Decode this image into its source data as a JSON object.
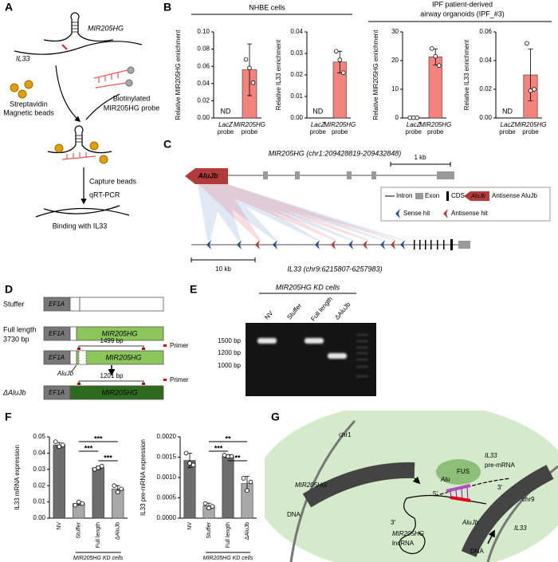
{
  "chart_data": [
    {
      "type": "bar",
      "ylabel": "Relative MIR205HG enrichment",
      "categories": [
        [
          "LacZ",
          "probe"
        ],
        [
          "MIR205HG",
          "probe"
        ]
      ],
      "values": [
        null,
        0.056
      ],
      "value_labels": [
        "ND",
        null
      ],
      "errors": [
        null,
        0.03
      ],
      "points": [
        null,
        [
          0.068,
          0.058,
          0.041
        ]
      ],
      "color": "#f4837d",
      "ylim": [
        0,
        0.1
      ],
      "yticks": [
        {
          "value": 0,
          "label": "0.00"
        },
        0.02,
        0.04,
        0.06,
        0.08,
        {
          "value": 0.1,
          "label": "0.10"
        }
      ]
    },
    {
      "type": "bar",
      "ylabel": "Relative IL33 enrichment",
      "categories": [
        [
          "LacZ",
          "probe"
        ],
        [
          "MIR205HG",
          "probe"
        ]
      ],
      "values": [
        null,
        0.026
      ],
      "value_labels": [
        "ND",
        null
      ],
      "errors": [
        null,
        0.005
      ],
      "points": [
        null,
        [
          0.031,
          0.027,
          0.021
        ]
      ],
      "color": "#f4837d",
      "ylim": [
        0,
        0.04
      ],
      "yticks": [
        {
          "value": 0,
          "label": "0.00"
        },
        0.01,
        0.02,
        0.03,
        0.04
      ]
    },
    {
      "type": "bar",
      "ylabel": "Relative MIR205HG enrichment",
      "categories": [
        [
          "LacZ",
          "probe"
        ],
        [
          "MIR205HG",
          "probe"
        ]
      ],
      "values": [
        0.1,
        21.3
      ],
      "errors": [
        0.1,
        2.8
      ],
      "points": [
        [
          0.1,
          0.1,
          0.1
        ],
        [
          24.2,
          21.5,
          18.3
        ]
      ],
      "color": "#f4837d",
      "ylim": [
        0,
        30
      ],
      "yticks": [
        0,
        10,
        20,
        30
      ]
    },
    {
      "type": "bar",
      "ylabel": "Relative IL33 enrichment",
      "categories": [
        [
          "LacZ",
          "probe"
        ],
        [
          "MIR205HG",
          "probe"
        ]
      ],
      "values": [
        null,
        0.03
      ],
      "value_labels": [
        "ND",
        null
      ],
      "errors": [
        null,
        0.018
      ],
      "points": [
        null,
        [
          0.052,
          0.019,
          0.02
        ]
      ],
      "color": "#f4837d",
      "ylim": [
        0,
        0.06
      ],
      "yticks": [
        {
          "value": 0,
          "label": "0.00"
        },
        0.02,
        0.04,
        0.06
      ]
    },
    {
      "type": "bar",
      "ylabel": "IL33 mRNA expression",
      "categories": [
        "NV",
        "Stuffer",
        "Full length",
        "ΔAluJb"
      ],
      "values": [
        0.045,
        0.009,
        0.031,
        0.018
      ],
      "errors": [
        0.0015,
        0.001,
        0.001,
        0.002
      ],
      "points": [
        [
          0.047,
          0.044,
          0.045
        ],
        [
          0.008,
          0.01,
          0.009
        ],
        [
          0.03,
          0.031,
          0.032
        ],
        [
          0.02,
          0.016,
          0.018
        ]
      ],
      "colors": [
        "#6d6d6d",
        "#a8a8a8",
        "#6d6d6d",
        "#a8a8a8"
      ],
      "significance": [
        {
          "between": [
            "Stuffer",
            "ΔAluJb"
          ],
          "label": "***"
        },
        {
          "between": [
            "Stuffer",
            "Full length"
          ],
          "label": "***"
        },
        {
          "between": [
            "Full length",
            "ΔAluJb"
          ],
          "label": "***"
        }
      ],
      "group_label": "MIR205HG KD cells",
      "ylim": [
        0,
        0.05
      ],
      "yticks": [
        {
          "value": 0,
          "label": "0.00"
        },
        0.01,
        0.02,
        0.03,
        0.04,
        0.05
      ]
    },
    {
      "type": "bar",
      "ylabel": "IL33 pre-mRNA expression",
      "categories": [
        "NV",
        "Stuffer",
        "Full length",
        "ΔAluJb"
      ],
      "values": [
        0.00142,
        0.0003,
        0.00153,
        0.00085
      ],
      "errors": [
        0.00018,
        7e-05,
        3e-05,
        0.00018
      ],
      "points": [
        [
          0.0016,
          0.00135,
          0.00131
        ],
        [
          0.00036,
          0.00025,
          0.00029
        ],
        [
          0.00155,
          0.00152,
          0.00152
        ],
        [
          0.00098,
          0.00068,
          0.00089
        ]
      ],
      "colors": [
        "#6d6d6d",
        "#a8a8a8",
        "#6d6d6d",
        "#a8a8a8"
      ],
      "significance": [
        {
          "between": [
            "Stuffer",
            "ΔAluJb"
          ],
          "label": "**"
        },
        {
          "between": [
            "Stuffer",
            "Full length"
          ],
          "label": "***"
        },
        {
          "between": [
            "Full length",
            "ΔAluJb"
          ],
          "label": "**"
        }
      ],
      "group_label": "MIR205HG KD cells",
      "ylim": [
        0,
        0.002
      ],
      "yticks": [
        {
          "value": 0,
          "label": "0.0000"
        },
        {
          "value": 0.0005,
          "label": "0.0005"
        },
        {
          "value": 0.001,
          "label": "0.0010"
        },
        {
          "value": 0.0015,
          "label": "0.0015"
        },
        {
          "value": 0.002,
          "label": "0.0020"
        }
      ]
    }
  ],
  "panels": {
    "A": {
      "letter": "A",
      "gene": "MIR205HG",
      "target": "IL33",
      "beads": [
        "Streptavidin",
        "Magnetic beads"
      ],
      "probe": [
        "Biotinylated",
        "MIR205HG probe"
      ],
      "steps": [
        "Capture beads",
        "qRT-PCR"
      ],
      "result": "Binding with IL33"
    },
    "B": {
      "letter": "B",
      "groups": [
        [
          "NHBE cells"
        ],
        [
          "IPF patient-derived",
          "airway organoids (IPF_#3)"
        ]
      ]
    },
    "C": {
      "letter": "C",
      "gene_a": "MIR205HG (chr1:209428819-209432848)",
      "scale_a": "1 kb",
      "element": "AluJb",
      "legend": [
        "Intron",
        "Exon",
        "CDS",
        "AluJb",
        "Antisense AluJb",
        "Sense hit",
        "Antisense hit"
      ],
      "gene_b": "IL33 (chr9:6215807-6257983)",
      "scale_b": "10 kb"
    },
    "D": {
      "letter": "D",
      "constructs": [
        {
          "name": [
            "Stuffer"
          ],
          "promoter": "EF1A"
        },
        {
          "name": [
            "Full length",
            "3730 bp"
          ],
          "promoter": "EF1A",
          "insert": "MIR205HG"
        },
        {
          "promoter": "EF1A",
          "insert": "MIR205HG",
          "amplicon": "1499 bp",
          "primer": "Primer",
          "deleted": "AluJb"
        },
        {
          "name": [
            "ΔAluJb"
          ],
          "promoter": "EF1A",
          "insert": "MIR205HG",
          "amplicon": "1201 bp",
          "primer": "Primer"
        }
      ]
    },
    "E": {
      "letter": "E",
      "group": "MIR205HG KD cells",
      "lanes": [
        "NV",
        "Stuffer",
        "Full length",
        "ΔAluJb"
      ],
      "markers": [
        "1500 bp",
        "1200 bp",
        "1000 bp"
      ]
    },
    "F": {
      "letter": "F"
    },
    "G": {
      "letter": "G",
      "labels": [
        "chr1",
        "MIR205HG",
        "DNA",
        "FUS",
        "IL33",
        "pre-mRNA",
        "Alu",
        "5′",
        "3′",
        "chr9",
        "AluJb",
        "IL33",
        "3′",
        "MIR205HG",
        "lncRNA",
        "DNA"
      ]
    }
  }
}
